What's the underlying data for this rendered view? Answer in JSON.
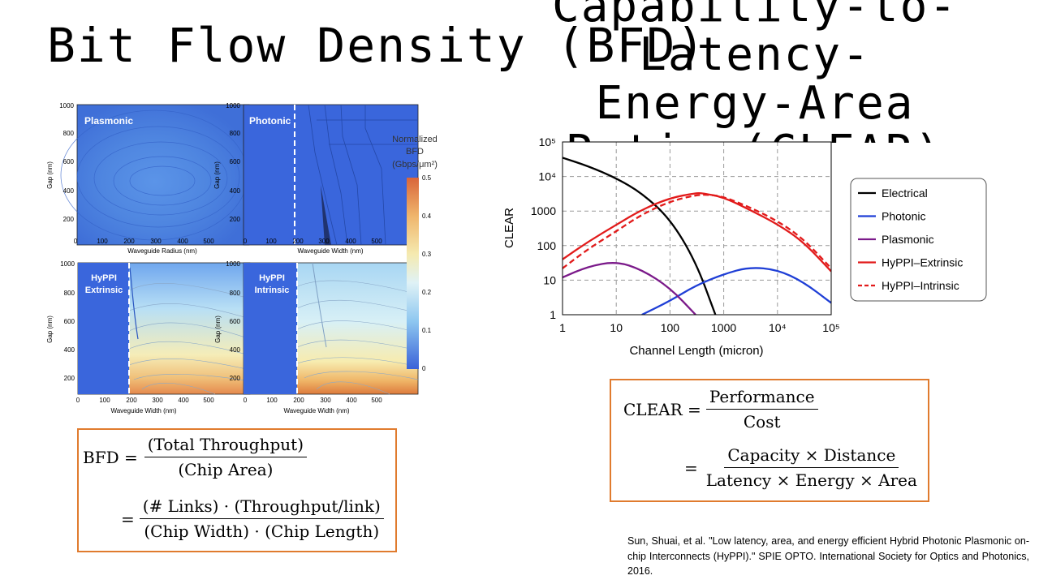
{
  "title_left": "Bit Flow Density (BFD)",
  "title_right": {
    "lines": [
      "Capability-to-",
      "Latency-",
      "Energy-Area",
      "Ratio (CLEAR)"
    ]
  },
  "colorbar": {
    "title_lines": [
      "Normalized",
      "BFD",
      "(Gbps/μm²)"
    ],
    "ticks": [
      "0.5",
      "0.4",
      "0.3",
      "0.2",
      "0.1",
      "0"
    ]
  },
  "bfd_panels": [
    {
      "label_lines": [
        "Plasmonic"
      ],
      "xlabel": "Waveguide Radius (nm)",
      "ylabel": "Gap (nm)",
      "xticks": [
        "0",
        "100",
        "200",
        "300",
        "400",
        "500"
      ],
      "yticks": [
        "1000",
        "800",
        "600",
        "400",
        "200"
      ]
    },
    {
      "label_lines": [
        "Photonic"
      ],
      "xlabel": "Waveguide Width (nm)",
      "ylabel": "Gap (nm)",
      "xticks": [
        "0",
        "100",
        "200",
        "300",
        "400",
        "500"
      ],
      "yticks": [
        "1000",
        "800",
        "600",
        "400",
        "200"
      ]
    },
    {
      "label_lines": [
        "HyPPI",
        "Extrinsic"
      ],
      "xlabel": "Waveguide Width (nm)",
      "ylabel": "Gap (nm)",
      "xticks": [
        "0",
        "100",
        "200",
        "300",
        "400",
        "500"
      ],
      "yticks": [
        "1000",
        "800",
        "600",
        "400",
        "200"
      ]
    },
    {
      "label_lines": [
        "HyPPI",
        "Intrinsic"
      ],
      "xlabel": "Waveguide Width (nm)",
      "ylabel": "Gap (nm)",
      "xticks": [
        "0",
        "100",
        "200",
        "300",
        "400",
        "500"
      ],
      "yticks": [
        "1000",
        "800",
        "600",
        "400",
        "200"
      ]
    }
  ],
  "bfd_equation": {
    "lhs": "BFD =",
    "frac1_num": "(Total Throughput)",
    "frac1_den": "(Chip Area)",
    "eq2": "=",
    "frac2_num": "(# Links) · (Throughput/link)",
    "frac2_den": "(Chip Width) · (Chip Length)"
  },
  "clear_equation": {
    "lhs": "CLEAR =",
    "frac1_num": "Performance",
    "frac1_den": "Cost",
    "eq2": "=",
    "frac2_num": "Capacity × Distance",
    "frac2_den": "Latency × Energy × Area"
  },
  "citation": "Sun, Shuai, et al. \"Low latency, area, and energy efficient Hybrid Photonic Plasmonic on-chip Interconnects (HyPPI).\" SPIE OPTO. International Society for Optics and Photonics, 2016.",
  "chart_data": {
    "type": "line",
    "title": "",
    "xlabel": "Channel Length (micron)",
    "ylabel": "CLEAR",
    "xscale": "log",
    "yscale": "log",
    "xlim": [
      1,
      100000
    ],
    "ylim": [
      1,
      100000
    ],
    "xticks": [
      "1",
      "10",
      "100",
      "1000",
      "10⁴",
      "10⁵"
    ],
    "yticks": [
      "1",
      "10",
      "100",
      "1000",
      "10⁴",
      "10⁵"
    ],
    "grid": true,
    "legend_position": "right",
    "series": [
      {
        "name": "Electrical",
        "color": "#000000",
        "dash": false,
        "x": [
          1,
          3,
          10,
          30,
          100,
          300,
          700
        ],
        "y": [
          35000,
          20000,
          9000,
          3300,
          600,
          35,
          1
        ]
      },
      {
        "name": "Photonic",
        "color": "#1f3fd6",
        "dash": false,
        "x": [
          30,
          100,
          300,
          1000,
          3000,
          10000,
          30000,
          100000
        ],
        "y": [
          1,
          2.5,
          7,
          15,
          24,
          20,
          9,
          2.2
        ]
      },
      {
        "name": "Plasmonic",
        "color": "#7b1a8a",
        "dash": false,
        "x": [
          1,
          3,
          10,
          30,
          100,
          300
        ],
        "y": [
          12,
          25,
          35,
          20,
          6,
          1
        ]
      },
      {
        "name": "HyPPI–Extrinsic",
        "color": "#e21b1b",
        "dash": false,
        "x": [
          1,
          3,
          10,
          30,
          100,
          300,
          400,
          1000,
          3000,
          10000,
          30000,
          100000
        ],
        "y": [
          40,
          130,
          400,
          1100,
          2400,
          3300,
          3300,
          2500,
          1100,
          420,
          130,
          18
        ]
      },
      {
        "name": "HyPPI–Intrinsic",
        "color": "#e21b1b",
        "dash": true,
        "x": [
          1,
          3,
          10,
          30,
          100,
          300,
          500,
          1000,
          3000,
          10000,
          30000,
          100000
        ],
        "y": [
          22,
          80,
          260,
          800,
          1900,
          2900,
          3000,
          2600,
          1300,
          520,
          160,
          22
        ]
      }
    ]
  }
}
